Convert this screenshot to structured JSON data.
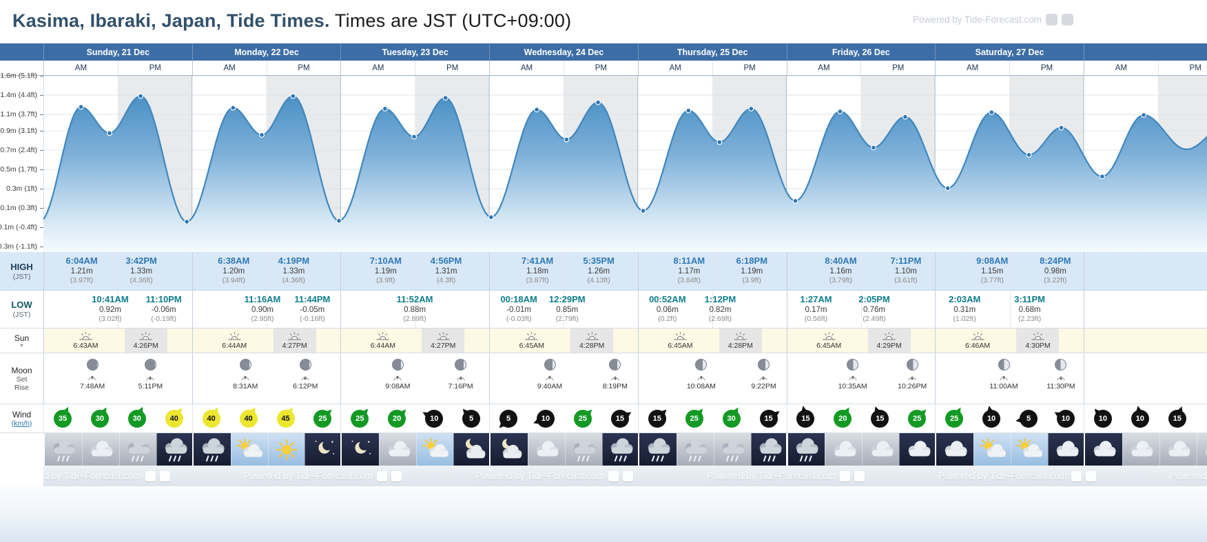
{
  "header": {
    "title_bold": "Kasima, Ibaraki, Japan, Tide Times.",
    "title_rest": " Times are JST (UTC+09:00)",
    "watermark": "Powered by Tide-Forecast.com"
  },
  "ampm": [
    "AM",
    "PM"
  ],
  "row_labels": {
    "high": "HIGH",
    "low": "LOW",
    "jst": "(JST)",
    "sun": "Sun",
    "moon": "Moon",
    "moon_set": "Set",
    "moon_rise": "Rise",
    "wind": "Wind",
    "wind_unit": "(km/h)"
  },
  "colors": {
    "header_blue": "#3c6da6",
    "high_time": "#2e78b5",
    "low_time": "#0d7d8c",
    "curve": "#3f87bf",
    "wind_light": "#121212",
    "wind_moderate": "#149a24",
    "wind_fresh": "#ece62f"
  },
  "chart_data": {
    "type": "area",
    "title": "Tide height curve, Kasima, Sunday 21 Dec - Saturday 27 Dec (partial next day at right)",
    "x_unit": "hours from Sunday 00:00 JST",
    "y_unit": "m (ft)",
    "legend": "none",
    "grid": "horizontal ticks every 0.7 ft, vertical lines at day boundaries, PM half-days shaded grey",
    "y_ticks": [
      {
        "label": "1.6m (5.1ft)",
        "ft": 5.1
      },
      {
        "label": "1.4m (4.4ft)",
        "ft": 4.4
      },
      {
        "label": "1.1m (3.7ft)",
        "ft": 3.7
      },
      {
        "label": "0.9m (3.1ft)",
        "ft": 3.1
      },
      {
        "label": "0.7m (2.4ft)",
        "ft": 2.4
      },
      {
        "label": "0.5m (1.7ft)",
        "ft": 1.7
      },
      {
        "label": "0.3m (1ft)",
        "ft": 1.0
      },
      {
        "label": "0.1m (0.3ft)",
        "ft": 0.3
      },
      {
        "label": "-0.1m (-0.4ft)",
        "ft": -0.4
      },
      {
        "label": "-0.3m (-1.1ft)",
        "ft": -1.1
      }
    ],
    "events": [
      {
        "t": -0.6,
        "h": -0.06,
        "dot": false,
        "inferred": true
      },
      {
        "t": 6.07,
        "h": 1.21,
        "dot": true
      },
      {
        "t": 10.68,
        "h": 0.92,
        "dot": true
      },
      {
        "t": 15.7,
        "h": 1.33,
        "dot": true
      },
      {
        "t": 23.17,
        "h": -0.06,
        "dot": true
      },
      {
        "t": 30.63,
        "h": 1.2,
        "dot": true
      },
      {
        "t": 35.27,
        "h": 0.9,
        "dot": true
      },
      {
        "t": 40.32,
        "h": 1.33,
        "dot": true
      },
      {
        "t": 47.73,
        "h": -0.05,
        "dot": true
      },
      {
        "t": 55.17,
        "h": 1.19,
        "dot": true
      },
      {
        "t": 59.87,
        "h": 0.88,
        "dot": true
      },
      {
        "t": 64.93,
        "h": 1.31,
        "dot": true
      },
      {
        "t": 72.3,
        "h": -0.01,
        "dot": true
      },
      {
        "t": 79.68,
        "h": 1.18,
        "dot": true
      },
      {
        "t": 84.48,
        "h": 0.85,
        "dot": true
      },
      {
        "t": 89.58,
        "h": 1.26,
        "dot": true
      },
      {
        "t": 96.87,
        "h": 0.06,
        "dot": true
      },
      {
        "t": 104.18,
        "h": 1.17,
        "dot": true
      },
      {
        "t": 109.2,
        "h": 0.82,
        "dot": true
      },
      {
        "t": 114.3,
        "h": 1.19,
        "dot": true
      },
      {
        "t": 121.45,
        "h": 0.17,
        "dot": true
      },
      {
        "t": 128.67,
        "h": 1.16,
        "dot": true
      },
      {
        "t": 134.08,
        "h": 0.76,
        "dot": true
      },
      {
        "t": 139.18,
        "h": 1.1,
        "dot": true
      },
      {
        "t": 146.05,
        "h": 0.31,
        "dot": true
      },
      {
        "t": 153.13,
        "h": 1.15,
        "dot": true
      },
      {
        "t": 159.18,
        "h": 0.68,
        "dot": true
      },
      {
        "t": 164.4,
        "h": 0.98,
        "dot": true
      },
      {
        "t": 171.0,
        "h": 0.44,
        "dot": true,
        "inferred": true
      },
      {
        "t": 177.7,
        "h": 1.12,
        "dot": true,
        "inferred": true
      },
      {
        "t": 184.6,
        "h": 0.74,
        "dot": false,
        "inferred": true
      },
      {
        "t": 191.0,
        "h": 1.0,
        "dot": false,
        "inferred": true
      }
    ]
  },
  "days": [
    {
      "label": "Sunday, 21 Dec",
      "high": [
        {
          "time": "6:04AM",
          "height_m": "1.21m",
          "height_ft": "(3.97ft)",
          "t": 6.07
        },
        {
          "time": "3:42PM",
          "height_m": "1.33m",
          "height_ft": "(4.36ft)",
          "t": 15.7
        }
      ],
      "low": [
        {
          "time": "10:41AM",
          "height_m": "0.92m",
          "height_ft": "(3.02ft)",
          "t": 10.68
        },
        {
          "time": "11:10PM",
          "height_m": "-0.06m",
          "height_ft": "(-0.19ft)",
          "t": 23.17
        }
      ],
      "sun": [
        {
          "event": "sunrise",
          "time": "6:43AM",
          "t": 6.72
        },
        {
          "event": "sunset",
          "time": "4:26PM",
          "t": 16.43
        }
      ],
      "moon": [
        {
          "event": "rise",
          "time": "7:48AM",
          "t": 7.8
        },
        {
          "event": "set",
          "time": "5:11PM",
          "t": 17.18
        }
      ],
      "moon_phase": 0.08,
      "wind": [
        {
          "speed": 35,
          "level": "moderate",
          "dir": 25
        },
        {
          "speed": 30,
          "level": "moderate",
          "dir": 30
        },
        {
          "speed": 30,
          "level": "moderate",
          "dir": 25
        },
        {
          "speed": 40,
          "level": "fresh",
          "dir": 35
        }
      ],
      "weather": [
        {
          "sky": "day",
          "icon": "rain"
        },
        {
          "sky": "day",
          "icon": "cloud"
        },
        {
          "sky": "day",
          "icon": "rain"
        },
        {
          "sky": "night",
          "icon": "rain"
        }
      ]
    },
    {
      "label": "Monday, 22 Dec",
      "high": [
        {
          "time": "6:38AM",
          "height_m": "1.20m",
          "height_ft": "(3.94ft)",
          "t": 6.63
        },
        {
          "time": "4:19PM",
          "height_m": "1.33m",
          "height_ft": "(4.36ft)",
          "t": 16.32
        }
      ],
      "low": [
        {
          "time": "11:16AM",
          "height_m": "0.90m",
          "height_ft": "(2.95ft)",
          "t": 11.27
        },
        {
          "time": "11:44PM",
          "height_m": "-0.05m",
          "height_ft": "(-0.16ft)",
          "t": 23.73
        }
      ],
      "sun": [
        {
          "event": "sunrise",
          "time": "6:44AM",
          "t": 6.73
        },
        {
          "event": "sunset",
          "time": "4:27PM",
          "t": 16.45
        }
      ],
      "moon": [
        {
          "event": "rise",
          "time": "8:31AM",
          "t": 8.52
        },
        {
          "event": "set",
          "time": "6:12PM",
          "t": 18.2
        }
      ],
      "moon_phase": 0.14,
      "wind": [
        {
          "speed": 40,
          "level": "fresh",
          "dir": 30
        },
        {
          "speed": 40,
          "level": "fresh",
          "dir": 30
        },
        {
          "speed": 45,
          "level": "fresh",
          "dir": 30
        },
        {
          "speed": 25,
          "level": "moderate",
          "dir": 45
        }
      ],
      "weather": [
        {
          "sky": "night",
          "icon": "rain"
        },
        {
          "sky": "sunny",
          "icon": "suncloud"
        },
        {
          "sky": "sunny",
          "icon": "sun"
        },
        {
          "sky": "night",
          "icon": "moonstars"
        }
      ]
    },
    {
      "label": "Tuesday, 23 Dec",
      "high": [
        {
          "time": "7:10AM",
          "height_m": "1.19m",
          "height_ft": "(3.9ft)",
          "t": 7.17
        },
        {
          "time": "4:56PM",
          "height_m": "1.31m",
          "height_ft": "(4.3ft)",
          "t": 16.93
        }
      ],
      "low": [
        {
          "time": "11:52AM",
          "height_m": "0.88m",
          "height_ft": "(2.89ft)",
          "t": 11.87
        }
      ],
      "sun": [
        {
          "event": "sunrise",
          "time": "6:44AM",
          "t": 6.73
        },
        {
          "event": "sunset",
          "time": "4:27PM",
          "t": 16.45
        }
      ],
      "moon": [
        {
          "event": "rise",
          "time": "9:08AM",
          "t": 9.13
        },
        {
          "event": "set",
          "time": "7:16PM",
          "t": 19.27
        }
      ],
      "moon_phase": 0.2,
      "wind": [
        {
          "speed": 25,
          "level": "moderate",
          "dir": 40
        },
        {
          "speed": 20,
          "level": "moderate",
          "dir": 45
        },
        {
          "speed": 10,
          "level": "light",
          "dir": 300
        },
        {
          "speed": 5,
          "level": "light",
          "dir": 320
        }
      ],
      "weather": [
        {
          "sky": "night",
          "icon": "moonstars"
        },
        {
          "sky": "day",
          "icon": "cloud"
        },
        {
          "sky": "sunny",
          "icon": "suncloud"
        },
        {
          "sky": "night",
          "icon": "mooncloud"
        }
      ]
    },
    {
      "label": "Wednesday, 24 Dec",
      "high": [
        {
          "time": "7:41AM",
          "height_m": "1.18m",
          "height_ft": "(3.87ft)",
          "t": 7.68
        },
        {
          "time": "5:35PM",
          "height_m": "1.26m",
          "height_ft": "(4.13ft)",
          "t": 17.58
        }
      ],
      "low": [
        {
          "time": "00:18AM",
          "height_m": "-0.01m",
          "height_ft": "(-0.03ft)",
          "t": 0.3
        },
        {
          "time": "12:29PM",
          "height_m": "0.85m",
          "height_ft": "(2.79ft)",
          "t": 12.48
        }
      ],
      "sun": [
        {
          "event": "sunrise",
          "time": "6:45AM",
          "t": 6.75
        },
        {
          "event": "sunset",
          "time": "4:28PM",
          "t": 16.47
        }
      ],
      "moon": [
        {
          "event": "rise",
          "time": "9:40AM",
          "t": 9.67
        },
        {
          "event": "set",
          "time": "8:19PM",
          "t": 20.32
        }
      ],
      "moon_phase": 0.27,
      "wind": [
        {
          "speed": 5,
          "level": "light",
          "dir": 225
        },
        {
          "speed": 10,
          "level": "light",
          "dir": 250
        },
        {
          "speed": 25,
          "level": "moderate",
          "dir": 45
        },
        {
          "speed": 15,
          "level": "light",
          "dir": 60
        }
      ],
      "weather": [
        {
          "sky": "night",
          "icon": "mooncloud"
        },
        {
          "sky": "day",
          "icon": "cloud"
        },
        {
          "sky": "day",
          "icon": "rain"
        },
        {
          "sky": "night",
          "icon": "rain"
        }
      ]
    },
    {
      "label": "Thursday, 25 Dec",
      "high": [
        {
          "time": "8:11AM",
          "height_m": "1.17m",
          "height_ft": "(3.84ft)",
          "t": 8.18
        },
        {
          "time": "6:18PM",
          "height_m": "1.19m",
          "height_ft": "(3.9ft)",
          "t": 18.3
        }
      ],
      "low": [
        {
          "time": "00:52AM",
          "height_m": "0.06m",
          "height_ft": "(0.2ft)",
          "t": 0.87
        },
        {
          "time": "1:12PM",
          "height_m": "0.82m",
          "height_ft": "(2.69ft)",
          "t": 13.2
        }
      ],
      "sun": [
        {
          "event": "sunrise",
          "time": "6:45AM",
          "t": 6.75
        },
        {
          "event": "sunset",
          "time": "4:28PM",
          "t": 16.47
        }
      ],
      "moon": [
        {
          "event": "rise",
          "time": "10:08AM",
          "t": 10.13
        },
        {
          "event": "set",
          "time": "9:22PM",
          "t": 21.37
        }
      ],
      "moon_phase": 0.34,
      "wind": [
        {
          "speed": 15,
          "level": "light",
          "dir": 45
        },
        {
          "speed": 25,
          "level": "moderate",
          "dir": 40
        },
        {
          "speed": 30,
          "level": "moderate",
          "dir": 30
        },
        {
          "speed": 15,
          "level": "light",
          "dir": 55
        }
      ],
      "weather": [
        {
          "sky": "night",
          "icon": "rain"
        },
        {
          "sky": "day",
          "icon": "rain"
        },
        {
          "sky": "day",
          "icon": "rain"
        },
        {
          "sky": "night",
          "icon": "rain"
        }
      ]
    },
    {
      "label": "Friday, 26 Dec",
      "high": [
        {
          "time": "8:40AM",
          "height_m": "1.16m",
          "height_ft": "(3.79ft)",
          "t": 8.67
        },
        {
          "time": "7:11PM",
          "height_m": "1.10m",
          "height_ft": "(3.61ft)",
          "t": 19.18
        }
      ],
      "low": [
        {
          "time": "1:27AM",
          "height_m": "0.17m",
          "height_ft": "(0.56ft)",
          "t": 1.45
        },
        {
          "time": "2:05PM",
          "height_m": "0.76m",
          "height_ft": "(2.49ft)",
          "t": 14.08
        }
      ],
      "sun": [
        {
          "event": "sunrise",
          "time": "6:45AM",
          "t": 6.75
        },
        {
          "event": "sunset",
          "time": "4:29PM",
          "t": 16.48
        }
      ],
      "moon": [
        {
          "event": "rise",
          "time": "10:35AM",
          "t": 10.58
        },
        {
          "event": "set",
          "time": "10:26PM",
          "t": 22.43
        }
      ],
      "moon_phase": 0.42,
      "wind": [
        {
          "speed": 15,
          "level": "light",
          "dir": 350
        },
        {
          "speed": 20,
          "level": "moderate",
          "dir": 30
        },
        {
          "speed": 15,
          "level": "light",
          "dir": 340
        },
        {
          "speed": 25,
          "level": "moderate",
          "dir": 45
        }
      ],
      "weather": [
        {
          "sky": "night",
          "icon": "rain"
        },
        {
          "sky": "day",
          "icon": "cloud"
        },
        {
          "sky": "day",
          "icon": "cloud"
        },
        {
          "sky": "night",
          "icon": "cloud"
        }
      ]
    },
    {
      "label": "Saturday, 27 Dec",
      "high": [
        {
          "time": "9:08AM",
          "height_m": "1.15m",
          "height_ft": "(3.77ft)",
          "t": 9.13
        },
        {
          "time": "8:24PM",
          "height_m": "0.98m",
          "height_ft": "(3.22ft)",
          "t": 20.4
        }
      ],
      "low": [
        {
          "time": "2:03AM",
          "height_m": "0.31m",
          "height_ft": "(1.02ft)",
          "t": 2.05
        },
        {
          "time": "3:11PM",
          "height_m": "0.68m",
          "height_ft": "(2.23ft)",
          "t": 15.18
        }
      ],
      "sun": [
        {
          "event": "sunrise",
          "time": "6:46AM",
          "t": 6.77
        },
        {
          "event": "sunset",
          "time": "4:30PM",
          "t": 16.5
        }
      ],
      "moon": [
        {
          "event": "rise",
          "time": "11:00AM",
          "t": 11.0
        },
        {
          "event": "set",
          "time": "11:30PM",
          "t": 23.5
        }
      ],
      "moon_phase": 0.5,
      "wind": [
        {
          "speed": 25,
          "level": "moderate",
          "dir": 30
        },
        {
          "speed": 10,
          "level": "light",
          "dir": 350
        },
        {
          "speed": 5,
          "level": "light",
          "dir": 260
        },
        {
          "speed": 10,
          "level": "light",
          "dir": 300
        }
      ],
      "weather": [
        {
          "sky": "night",
          "icon": "cloud"
        },
        {
          "sky": "sunny",
          "icon": "suncloud"
        },
        {
          "sky": "sunny",
          "icon": "suncloud"
        },
        {
          "sky": "night",
          "icon": "cloud"
        }
      ]
    }
  ],
  "partial_day": {
    "wind": [
      {
        "speed": 10,
        "level": "light",
        "dir": 320
      },
      {
        "speed": 10,
        "level": "light",
        "dir": 350
      },
      {
        "speed": 15,
        "level": "light",
        "dir": 20
      }
    ],
    "weather": [
      {
        "sky": "night",
        "icon": "cloud"
      },
      {
        "sky": "day",
        "icon": "cloud"
      },
      {
        "sky": "day",
        "icon": "cloud"
      },
      {
        "sky": "day",
        "icon": "cloud"
      }
    ]
  },
  "footer": {
    "watermark": "Powered by Tide-Forecast.com"
  }
}
